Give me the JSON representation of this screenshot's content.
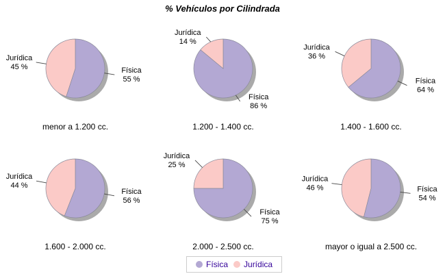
{
  "title": "% Vehículos por Cilindrada",
  "colors": {
    "fisica": "#B3A8D3",
    "juridica": "#FBCAC7",
    "shadow": "#9B9B9B",
    "slice_stroke": "#8A8A9A",
    "connector": "#444444",
    "label_text": "#000000",
    "legend_text": "#330099",
    "legend_border": "#CCCCCC"
  },
  "legend": {
    "items": [
      {
        "name": "fisica",
        "label": "Física",
        "color": "#B3A8D3"
      },
      {
        "name": "juridica",
        "label": "Jurídica",
        "color": "#FBCAC7"
      }
    ]
  },
  "chart_data": [
    {
      "type": "pie",
      "category": "menor a 1.200 cc.",
      "slices": [
        {
          "name": "Física",
          "pct": 55,
          "label": "55 %"
        },
        {
          "name": "Jurídica",
          "pct": 45,
          "label": "45 %"
        }
      ]
    },
    {
      "type": "pie",
      "category": "1.200 - 1.400 cc.",
      "slices": [
        {
          "name": "Física",
          "pct": 86,
          "label": "86 %"
        },
        {
          "name": "Jurídica",
          "pct": 14,
          "label": "14 %"
        }
      ]
    },
    {
      "type": "pie",
      "category": "1.400 - 1.600 cc.",
      "slices": [
        {
          "name": "Física",
          "pct": 64,
          "label": "64 %"
        },
        {
          "name": "Jurídica",
          "pct": 36,
          "label": "36 %"
        }
      ]
    },
    {
      "type": "pie",
      "category": "1.600 - 2.000 cc.",
      "slices": [
        {
          "name": "Física",
          "pct": 56,
          "label": "56 %"
        },
        {
          "name": "Jurídica",
          "pct": 44,
          "label": "44 %"
        }
      ]
    },
    {
      "type": "pie",
      "category": "2.000 - 2.500 cc.",
      "slices": [
        {
          "name": "Física",
          "pct": 75,
          "label": "75 %"
        },
        {
          "name": "Jurídica",
          "pct": 25,
          "label": "25 %"
        }
      ]
    },
    {
      "type": "pie",
      "category": "mayor o igual a 2.500 cc.",
      "slices": [
        {
          "name": "Física",
          "pct": 54,
          "label": "54 %"
        },
        {
          "name": "Jurídica",
          "pct": 46,
          "label": "46 %"
        }
      ]
    }
  ]
}
